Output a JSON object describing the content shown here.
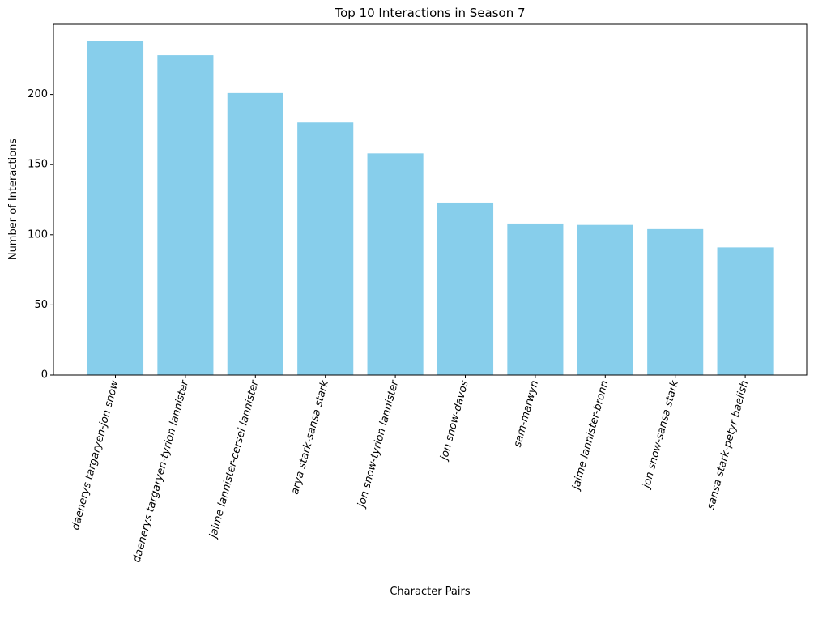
{
  "chart_data": {
    "type": "bar",
    "title": "Top 10 Interactions in Season 7",
    "xlabel": "Character Pairs",
    "ylabel": "Number of Interactions",
    "categories": [
      "daenerys targaryen-jon snow",
      "daenerys targaryen-tyrion lannister",
      "jaime lannister-cersei lannister",
      "arya stark-sansa stark",
      "jon snow-tyrion lannister",
      "jon snow-davos",
      "sam-marwyn",
      "jaime lannister-bronn",
      "jon snow-sansa stark",
      "sansa stark-petyr baelish"
    ],
    "values": [
      238,
      228,
      201,
      180,
      158,
      123,
      108,
      107,
      104,
      91
    ],
    "ylim": [
      0,
      250
    ],
    "yticks": [
      0,
      50,
      100,
      150,
      200
    ],
    "grid": false,
    "bar_color": "#87ceeb",
    "tick_label_rotation_deg": 75
  }
}
